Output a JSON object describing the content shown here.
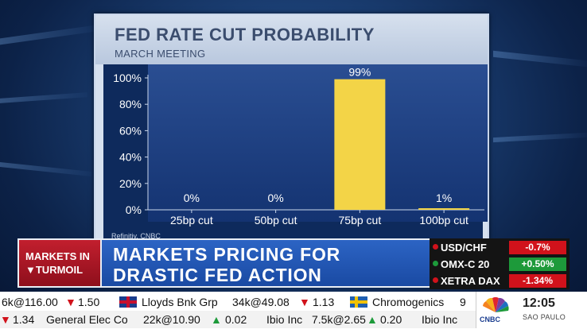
{
  "chart_panel": {
    "title": "FED RATE CUT PROBABILITY",
    "subtitle": "MARCH MEETING",
    "source": "Refinitiv, CNBC"
  },
  "chart_data": {
    "type": "bar",
    "categories": [
      "25bp cut",
      "50bp cut",
      "75bp cut",
      "100bp cut"
    ],
    "values": [
      0,
      0,
      99,
      1
    ],
    "data_labels": [
      "0%",
      "0%",
      "99%",
      "1%"
    ],
    "ylim": [
      0,
      100
    ],
    "yticks": [
      "0%",
      "20%",
      "40%",
      "60%",
      "80%",
      "100%"
    ],
    "ytick_values": [
      0,
      20,
      40,
      60,
      80,
      100
    ],
    "title": "FED RATE CUT PROBABILITY",
    "subtitle": "MARCH MEETING",
    "xlabel": "",
    "ylabel": "",
    "grid": false,
    "bar_color": "#f3d447"
  },
  "lower_third": {
    "logo_line1": "MARKETS IN",
    "logo_line2": "▼TURMOIL",
    "headline_line1": "MARKETS PRICING FOR",
    "headline_line2": "DRASTIC FED ACTION"
  },
  "market_box": [
    {
      "name": "USD/CHF",
      "value": "-0.7%",
      "status_color": "#d1121b"
    },
    {
      "name": "OMX-C 20",
      "value": "+0.50%",
      "status_color": "#1d9a3a"
    },
    {
      "name": "XETRA DAX",
      "value": "-1.34%",
      "status_color": "#d1121b"
    }
  ],
  "ticker": {
    "line1": [
      {
        "text": "6k@116.00",
        "kind": "plain"
      },
      {
        "text": "▼",
        "kind": "down"
      },
      {
        "text": "1.50",
        "kind": "plain"
      },
      {
        "text": "Lloyds Bnk Grp",
        "kind": "plain"
      },
      {
        "text": "34k@49.08",
        "kind": "plain"
      },
      {
        "text": "▼",
        "kind": "down"
      },
      {
        "text": "1.13",
        "kind": "plain"
      },
      {
        "text": "Chromogenics",
        "kind": "plain"
      },
      {
        "text": "9",
        "kind": "plain"
      }
    ],
    "line2": [
      {
        "text": "▼",
        "kind": "down"
      },
      {
        "text": "1.34",
        "kind": "plain"
      },
      {
        "text": "General Elec Co",
        "kind": "plain"
      },
      {
        "text": "22k@10.90",
        "kind": "plain"
      },
      {
        "text": "▲",
        "kind": "up"
      },
      {
        "text": "0.02",
        "kind": "plain"
      },
      {
        "text": "Ibio Inc",
        "kind": "plain"
      },
      {
        "text": "7.5k@2.65",
        "kind": "plain"
      },
      {
        "text": "▲",
        "kind": "up"
      },
      {
        "text": "0.20",
        "kind": "plain"
      },
      {
        "text": "Ibio Inc",
        "kind": "plain"
      }
    ]
  },
  "brand": {
    "network": "CNBC",
    "time": "12:05",
    "city": "SAO PAULO"
  }
}
